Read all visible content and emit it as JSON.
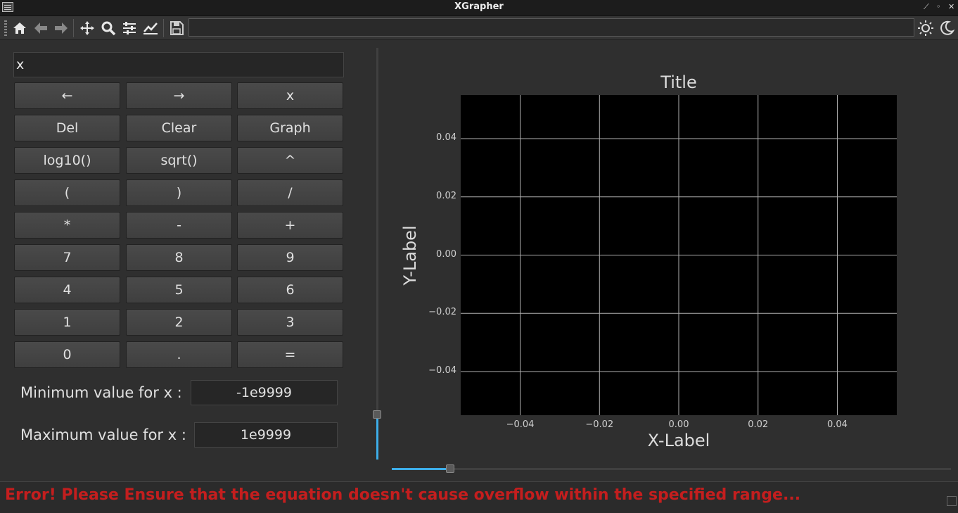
{
  "window": {
    "title": "XGrapher"
  },
  "toolbar": {
    "buttons": [
      "home-icon",
      "back-arrow-icon",
      "forward-arrow-icon",
      "pan-icon",
      "zoom-icon",
      "configure-subplots-icon",
      "edit-axes-icon",
      "save-icon"
    ],
    "coordinates_text": "",
    "theme_buttons": [
      "sun-icon",
      "moon-icon"
    ]
  },
  "expression": {
    "value": "x"
  },
  "keys": [
    [
      "←",
      "→",
      "x"
    ],
    [
      "Del",
      "Clear",
      "Graph"
    ],
    [
      "log10()",
      "sqrt()",
      "^"
    ],
    [
      "(",
      ")",
      "/"
    ],
    [
      "*",
      "-",
      "+"
    ],
    [
      "7",
      "8",
      "9"
    ],
    [
      "4",
      "5",
      "6"
    ],
    [
      "1",
      "2",
      "3"
    ],
    [
      "0",
      ".",
      "="
    ]
  ],
  "range": {
    "min_label": "Minimum value for x :",
    "min_value": "-1e9999",
    "max_label": "Maximum value for x :",
    "max_value": "1e9999"
  },
  "sliders": {
    "vertical_level": 0.1,
    "horizontal_level": 0.1
  },
  "chart_data": {
    "type": "line",
    "title": "Title",
    "xlabel": "X-Label",
    "ylabel": "Y-Label",
    "xlim": [
      -0.055,
      0.055
    ],
    "ylim": [
      -0.055,
      0.055
    ],
    "xticks": [
      -0.04,
      -0.02,
      0.0,
      0.02,
      0.04
    ],
    "xtick_labels": [
      "−0.04",
      "−0.02",
      "0.00",
      "0.02",
      "0.04"
    ],
    "yticks": [
      0.04,
      0.02,
      0.0,
      -0.02,
      -0.04
    ],
    "ytick_labels": [
      "0.04",
      "0.02",
      "0.00",
      "−0.02",
      "−0.04"
    ],
    "grid": true,
    "series": [],
    "colors": {
      "background": "#000000",
      "grid": "#b0b0b0"
    }
  },
  "status": {
    "message": "Error! Please Ensure that the equation doesn't cause overflow within the specified range...",
    "color": "#c41e1e"
  }
}
